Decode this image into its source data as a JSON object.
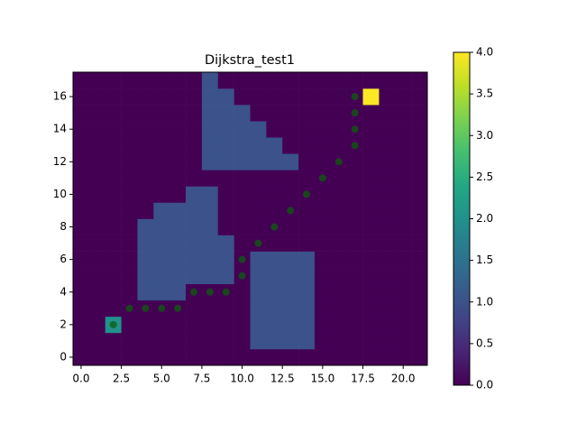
{
  "chart_data": {
    "type": "heatmap",
    "title": "Dijkstra_test1",
    "colormap": "viridis",
    "xlim": [
      -0.5,
      21.5
    ],
    "ylim": [
      -0.5,
      17.5
    ],
    "xticks": [
      {
        "value": 0,
        "label": "0.0"
      },
      {
        "value": 2.5,
        "label": "2.5"
      },
      {
        "value": 5,
        "label": "5.0"
      },
      {
        "value": 7.5,
        "label": "7.5"
      },
      {
        "value": 10,
        "label": "10.0"
      },
      {
        "value": 12.5,
        "label": "12.5"
      },
      {
        "value": 15,
        "label": "15.0"
      },
      {
        "value": 17.5,
        "label": "17.5"
      },
      {
        "value": 20,
        "label": "20.0"
      }
    ],
    "yticks": [
      0,
      2,
      4,
      6,
      8,
      10,
      12,
      14,
      16
    ],
    "clim": [
      0,
      4
    ],
    "cticks": [
      {
        "value": 0,
        "label": "0.0"
      },
      {
        "value": 0.5,
        "label": "0.5"
      },
      {
        "value": 1,
        "label": "1.0"
      },
      {
        "value": 1.5,
        "label": "1.5"
      },
      {
        "value": 2,
        "label": "2.0"
      },
      {
        "value": 2.5,
        "label": "2.5"
      },
      {
        "value": 3,
        "label": "3.0"
      },
      {
        "value": 3.5,
        "label": "3.5"
      },
      {
        "value": 4,
        "label": "4.0"
      }
    ],
    "z": [
      [
        0,
        0,
        0,
        0,
        0,
        0,
        0,
        0,
        0,
        0,
        0,
        0,
        0,
        0,
        0,
        0,
        0,
        0,
        0,
        0,
        0,
        0
      ],
      [
        0,
        0,
        0,
        0,
        0,
        0,
        0,
        0,
        0,
        0,
        0,
        1,
        1,
        1,
        1,
        0,
        0,
        0,
        0,
        0,
        0,
        0
      ],
      [
        0,
        0,
        2,
        0,
        0,
        0,
        0,
        0,
        0,
        0,
        0,
        1,
        1,
        1,
        1,
        0,
        0,
        0,
        0,
        0,
        0,
        0
      ],
      [
        0,
        0,
        0,
        0,
        0,
        0,
        0,
        0,
        0,
        0,
        0,
        1,
        1,
        1,
        1,
        0,
        0,
        0,
        0,
        0,
        0,
        0
      ],
      [
        0,
        0,
        0,
        0,
        1,
        1,
        1,
        0,
        0,
        0,
        0,
        1,
        1,
        1,
        1,
        0,
        0,
        0,
        0,
        0,
        0,
        0
      ],
      [
        0,
        0,
        0,
        0,
        1,
        1,
        1,
        1,
        1,
        1,
        0,
        1,
        1,
        1,
        1,
        0,
        0,
        0,
        0,
        0,
        0,
        0
      ],
      [
        0,
        0,
        0,
        0,
        1,
        1,
        1,
        1,
        1,
        1,
        0,
        1,
        1,
        1,
        1,
        0,
        0,
        0,
        0,
        0,
        0,
        0
      ],
      [
        0,
        0,
        0,
        0,
        1,
        1,
        1,
        1,
        1,
        1,
        0,
        0,
        0,
        0,
        0,
        0,
        0,
        0,
        0,
        0,
        0,
        0
      ],
      [
        0,
        0,
        0,
        0,
        1,
        1,
        1,
        1,
        1,
        0,
        0,
        0,
        0,
        0,
        0,
        0,
        0,
        0,
        0,
        0,
        0,
        0
      ],
      [
        0,
        0,
        0,
        0,
        0,
        1,
        1,
        1,
        1,
        0,
        0,
        0,
        0,
        0,
        0,
        0,
        0,
        0,
        0,
        0,
        0,
        0
      ],
      [
        0,
        0,
        0,
        0,
        0,
        0,
        0,
        1,
        1,
        0,
        0,
        0,
        0,
        0,
        0,
        0,
        0,
        0,
        0,
        0,
        0,
        0
      ],
      [
        0,
        0,
        0,
        0,
        0,
        0,
        0,
        0,
        0,
        0,
        0,
        0,
        0,
        0,
        0,
        0,
        0,
        0,
        0,
        0,
        0,
        0
      ],
      [
        0,
        0,
        0,
        0,
        0,
        0,
        0,
        0,
        1,
        1,
        1,
        1,
        1,
        1,
        0,
        0,
        0,
        0,
        0,
        0,
        0,
        0
      ],
      [
        0,
        0,
        0,
        0,
        0,
        0,
        0,
        0,
        1,
        1,
        1,
        1,
        1,
        0,
        0,
        0,
        0,
        0,
        0,
        0,
        0,
        0
      ],
      [
        0,
        0,
        0,
        0,
        0,
        0,
        0,
        0,
        1,
        1,
        1,
        1,
        0,
        0,
        0,
        0,
        0,
        0,
        0,
        0,
        0,
        0
      ],
      [
        0,
        0,
        0,
        0,
        0,
        0,
        0,
        0,
        1,
        1,
        1,
        0,
        0,
        0,
        0,
        0,
        0,
        0,
        0,
        0,
        0,
        0
      ],
      [
        0,
        0,
        0,
        0,
        0,
        0,
        0,
        0,
        1,
        1,
        0,
        0,
        0,
        0,
        0,
        0,
        0,
        0,
        4,
        0,
        0,
        0
      ],
      [
        0,
        0,
        0,
        0,
        0,
        0,
        0,
        0,
        1,
        0,
        0,
        0,
        0,
        0,
        0,
        0,
        0,
        0,
        0,
        0,
        0,
        0
      ]
    ],
    "path": {
      "color": "#0b5d0b",
      "x": [
        2,
        3,
        4,
        5,
        6,
        7,
        8,
        9,
        10,
        10,
        11,
        12,
        13,
        14,
        15,
        16,
        17,
        17,
        17,
        17
      ],
      "y": [
        2,
        3,
        3,
        3,
        3,
        4,
        4,
        4,
        5,
        6,
        7,
        8,
        9,
        10,
        11,
        12,
        13,
        14,
        15,
        16
      ]
    }
  }
}
